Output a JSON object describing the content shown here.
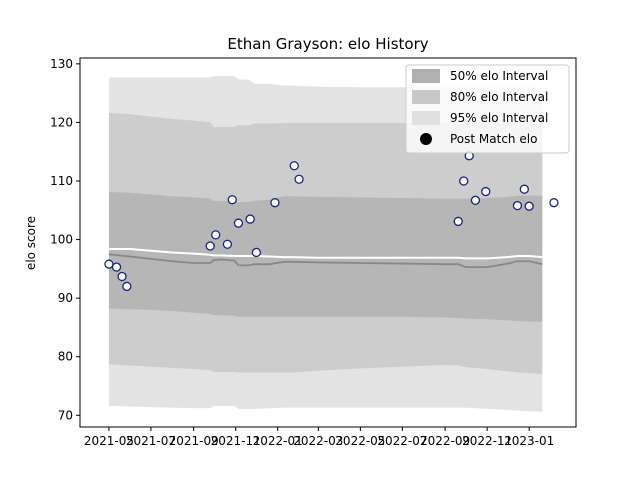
{
  "chart_data": {
    "type": "line",
    "title": "Ethan Grayson: elo History",
    "xlabel": "",
    "ylabel": "elo score",
    "xlim": [
      "2021-03-20",
      "2023-03-10"
    ],
    "ylim": [
      68,
      131
    ],
    "yticks": [
      70,
      80,
      90,
      100,
      110,
      120,
      130
    ],
    "xticks": [
      {
        "date": "2021-05-01",
        "label": "2021-05"
      },
      {
        "date": "2021-07-01",
        "label": "2021-07"
      },
      {
        "date": "2021-09-01",
        "label": "2021-09"
      },
      {
        "date": "2021-11-01",
        "label": "2021-11"
      },
      {
        "date": "2022-01-01",
        "label": "2022-01"
      },
      {
        "date": "2022-03-01",
        "label": "2022-03"
      },
      {
        "date": "2022-05-01",
        "label": "2022-05"
      },
      {
        "date": "2022-07-01",
        "label": "2022-07"
      },
      {
        "date": "2022-09-01",
        "label": "2022-09"
      },
      {
        "date": "2022-11-01",
        "label": "2022-11"
      },
      {
        "date": "2023-01-01",
        "label": "2023-01"
      }
    ],
    "grid": false,
    "legend_position": "upper-right",
    "legend": [
      {
        "label": "50% elo Interval",
        "kind": "band",
        "color": "#b0b0b0"
      },
      {
        "label": "80% elo Interval",
        "kind": "band",
        "color": "#c8c8c8"
      },
      {
        "label": "95% elo Interval",
        "kind": "band",
        "color": "#e0e0e0"
      },
      {
        "label": "Post Match elo",
        "kind": "marker",
        "color": "#000000"
      }
    ],
    "colors": {
      "band95": "#e3e3e3",
      "band80": "#cdcdcd",
      "band50": "#b6b6b6",
      "mean_line": "#888888",
      "upper_line": "#ffffff",
      "marker_edge": "#1a237e",
      "marker_fill": "#ffffff"
    },
    "bands": {
      "dates": [
        "2021-05-01",
        "2021-06-01",
        "2021-07-01",
        "2021-08-01",
        "2021-09-01",
        "2021-09-25",
        "2021-09-30",
        "2021-10-10",
        "2021-10-30",
        "2021-11-05",
        "2021-11-20",
        "2021-11-28",
        "2021-12-20",
        "2022-01-10",
        "2022-01-20",
        "2022-03-01",
        "2022-05-01",
        "2022-07-01",
        "2022-09-01",
        "2022-09-20",
        "2022-10-01",
        "2022-11-01",
        "2022-12-01",
        "2022-12-15",
        "2023-01-01",
        "2023-01-20"
      ],
      "mean": [
        97.5,
        97.1,
        96.7,
        96.3,
        96.0,
        96.0,
        96.5,
        96.6,
        96.4,
        95.6,
        95.6,
        95.8,
        95.8,
        96.2,
        96.2,
        96.1,
        96.0,
        95.9,
        95.8,
        95.8,
        95.3,
        95.3,
        95.9,
        96.3,
        96.3,
        95.8
      ],
      "upper": [
        98.4,
        98.4,
        98.1,
        97.8,
        97.6,
        97.4,
        97.3,
        97.3,
        97.2,
        97.2,
        97.2,
        97.2,
        97.1,
        97.0,
        97.0,
        96.9,
        96.9,
        96.9,
        96.9,
        96.9,
        96.8,
        96.8,
        97.0,
        97.2,
        97.2,
        97.0
      ],
      "p50_lo": [
        88.2,
        88.1,
        88.0,
        87.8,
        87.5,
        87.3,
        87.1,
        87.1,
        87.0,
        86.8,
        86.8,
        86.8,
        86.8,
        86.8,
        86.8,
        86.8,
        86.8,
        86.8,
        86.7,
        86.6,
        86.5,
        86.4,
        86.2,
        86.1,
        86.0,
        86.0
      ],
      "p50_hi": [
        108.1,
        108.0,
        107.7,
        107.4,
        107.2,
        107.0,
        106.6,
        106.6,
        106.6,
        106.4,
        106.4,
        106.6,
        106.8,
        107.4,
        107.4,
        107.3,
        107.2,
        107.1,
        107.0,
        107.0,
        107.0,
        107.1,
        107.3,
        107.5,
        107.5,
        107.5
      ],
      "p80_lo": [
        78.7,
        78.5,
        78.3,
        78.1,
        77.9,
        77.7,
        77.4,
        77.4,
        77.4,
        77.3,
        77.3,
        77.3,
        77.3,
        77.3,
        77.3,
        77.6,
        78.0,
        78.3,
        78.6,
        78.5,
        78.2,
        77.9,
        77.5,
        77.3,
        77.2,
        77.0
      ],
      "p80_hi": [
        121.6,
        121.4,
        121.0,
        120.6,
        120.3,
        120.0,
        119.2,
        119.2,
        119.2,
        119.5,
        119.5,
        119.8,
        119.8,
        119.9,
        119.9,
        119.9,
        119.9,
        119.9,
        119.9,
        119.9,
        119.9,
        120.0,
        120.1,
        120.1,
        120.1,
        120.1
      ],
      "p95_lo": [
        71.6,
        71.5,
        71.4,
        71.3,
        71.2,
        71.2,
        71.6,
        71.6,
        71.6,
        71.1,
        71.1,
        71.1,
        71.2,
        71.3,
        71.3,
        71.3,
        71.3,
        71.3,
        71.3,
        71.3,
        71.3,
        71.1,
        70.9,
        70.8,
        70.7,
        70.6
      ],
      "p95_hi": [
        127.7,
        127.7,
        127.7,
        127.7,
        127.7,
        127.7,
        127.9,
        127.9,
        127.9,
        127.3,
        127.3,
        126.6,
        126.6,
        126.3,
        126.3,
        126.1,
        126.0,
        126.0,
        126.0,
        126.0,
        126.0,
        126.0,
        126.0,
        126.0,
        126.0,
        126.0
      ]
    },
    "points": {
      "name": "Post Match elo",
      "x": [
        "2021-05-01",
        "2021-05-12",
        "2021-05-20",
        "2021-05-27",
        "2021-09-25",
        "2021-10-03",
        "2021-10-20",
        "2021-10-27",
        "2021-11-05",
        "2021-11-22",
        "2021-12-01",
        "2021-12-28",
        "2022-01-25",
        "2022-02-01",
        "2022-09-20",
        "2022-09-28",
        "2022-10-06",
        "2022-10-15",
        "2022-10-30",
        "2022-12-15",
        "2022-12-25",
        "2023-01-01",
        "2023-02-06"
      ],
      "y": [
        95.8,
        95.3,
        93.7,
        92.0,
        98.9,
        100.8,
        99.2,
        106.8,
        102.8,
        103.5,
        97.8,
        106.3,
        112.6,
        110.3,
        103.1,
        110.0,
        114.3,
        106.7,
        108.2,
        105.8,
        108.6,
        105.7,
        106.3
      ]
    }
  }
}
